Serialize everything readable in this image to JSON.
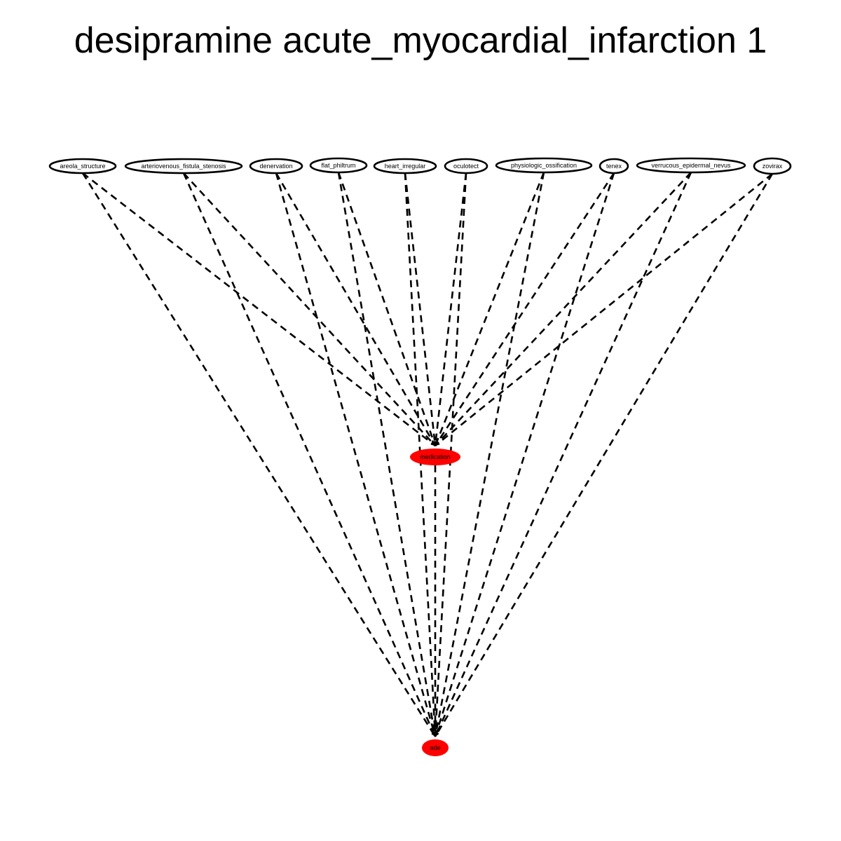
{
  "title": "desipramine acute_myocardial_infarction 1",
  "colors": {
    "highlight_fill": "#ff0000",
    "node_fill": "#ffffff",
    "stroke": "#000000"
  },
  "edge_style": "dashed",
  "nodes": [
    {
      "id": "areola_structure",
      "label": "areola_structure",
      "highlighted": false
    },
    {
      "id": "arteriovenous_fistula_stenosis",
      "label": "arteriovenous_fistula_stenosis",
      "highlighted": false
    },
    {
      "id": "denervation",
      "label": "denervation",
      "highlighted": false
    },
    {
      "id": "flat_philtrum",
      "label": "flat_philtrum",
      "highlighted": false
    },
    {
      "id": "heart_irregular",
      "label": "heart_irregular",
      "highlighted": false
    },
    {
      "id": "oculotect",
      "label": "oculotect",
      "highlighted": false
    },
    {
      "id": "physiologic_ossification",
      "label": "physiologic_ossification",
      "highlighted": false
    },
    {
      "id": "tenex",
      "label": "tenex",
      "highlighted": false
    },
    {
      "id": "verrucous_epidermal_nevus",
      "label": "verrucous_epidermal_nevus",
      "highlighted": false
    },
    {
      "id": "zovirax",
      "label": "zovirax",
      "highlighted": false
    },
    {
      "id": "medication",
      "label": "medication",
      "highlighted": true
    },
    {
      "id": "ade",
      "label": "ade",
      "highlighted": true
    }
  ],
  "edges": [
    {
      "from": "areola_structure",
      "to": "medication"
    },
    {
      "from": "areola_structure",
      "to": "ade"
    },
    {
      "from": "arteriovenous_fistula_stenosis",
      "to": "medication"
    },
    {
      "from": "arteriovenous_fistula_stenosis",
      "to": "ade"
    },
    {
      "from": "denervation",
      "to": "medication"
    },
    {
      "from": "denervation",
      "to": "ade"
    },
    {
      "from": "flat_philtrum",
      "to": "medication"
    },
    {
      "from": "flat_philtrum",
      "to": "ade"
    },
    {
      "from": "heart_irregular",
      "to": "medication"
    },
    {
      "from": "heart_irregular",
      "to": "ade"
    },
    {
      "from": "oculotect",
      "to": "medication"
    },
    {
      "from": "oculotect",
      "to": "ade"
    },
    {
      "from": "physiologic_ossification",
      "to": "medication"
    },
    {
      "from": "physiologic_ossification",
      "to": "ade"
    },
    {
      "from": "tenex",
      "to": "medication"
    },
    {
      "from": "tenex",
      "to": "ade"
    },
    {
      "from": "verrucous_epidermal_nevus",
      "to": "medication"
    },
    {
      "from": "verrucous_epidermal_nevus",
      "to": "ade"
    },
    {
      "from": "zovirax",
      "to": "medication"
    },
    {
      "from": "zovirax",
      "to": "ade"
    },
    {
      "from": "medication",
      "to": "ade"
    }
  ]
}
